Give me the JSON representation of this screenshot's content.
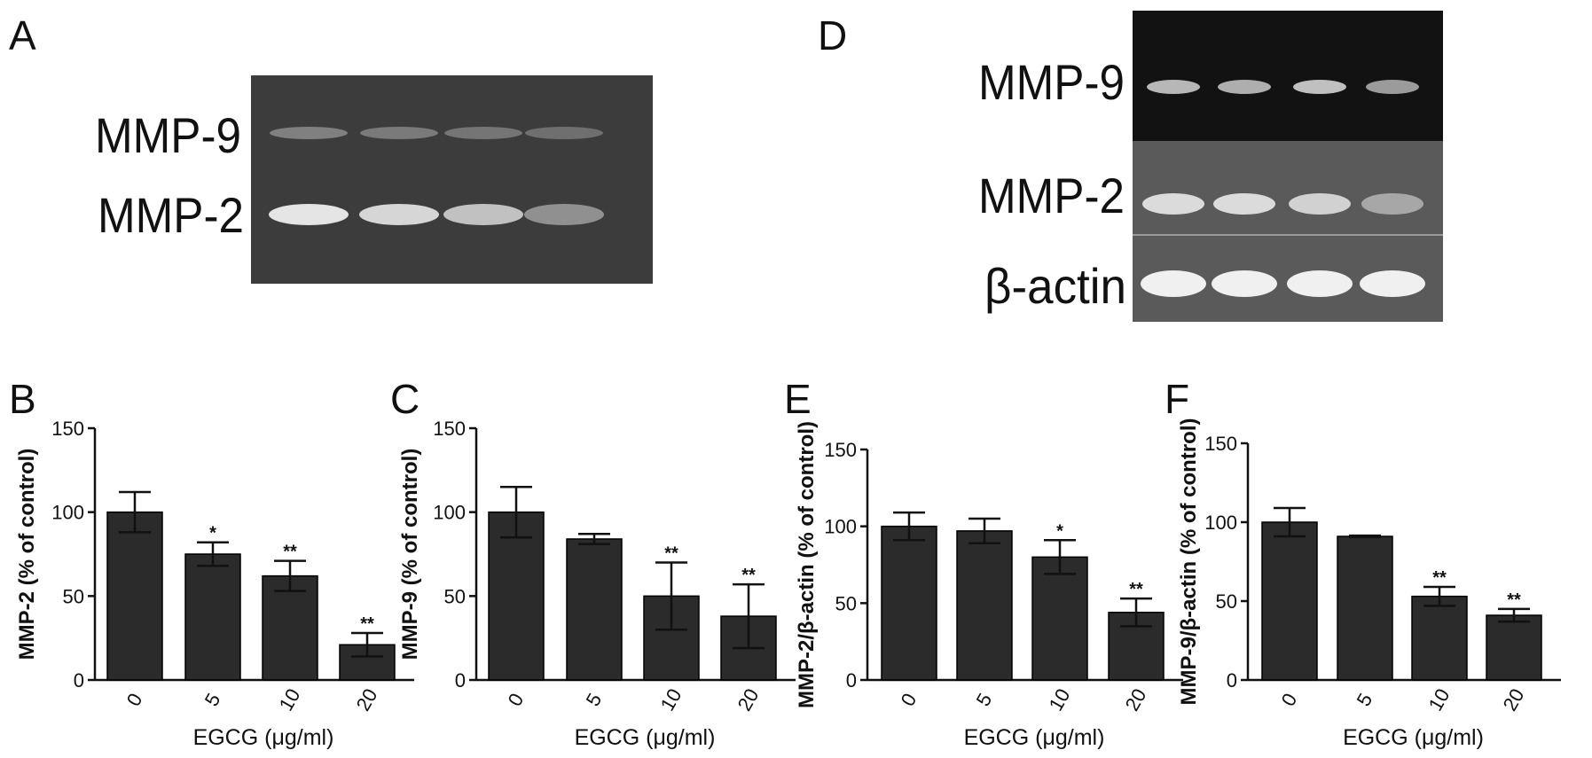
{
  "panels": {
    "A": {
      "letter": "A",
      "band_labels": [
        "MMP-9",
        "MMP-2"
      ],
      "band_intensity": {
        "MMP-9": [
          0.42,
          0.38,
          0.34,
          0.3
        ],
        "MMP-2": [
          0.95,
          0.88,
          0.78,
          0.52
        ]
      }
    },
    "D": {
      "letter": "D",
      "band_labels": [
        "MMP-9",
        "MMP-2",
        "β-actin"
      ],
      "band_intensity": {
        "MMP-9": [
          0.75,
          0.72,
          0.8,
          0.62
        ],
        "MMP-2": [
          0.9,
          0.9,
          0.85,
          0.62
        ],
        "β-actin": [
          1.0,
          1.0,
          1.0,
          1.0
        ]
      }
    }
  },
  "colors": {
    "bar": "#2b2b2b",
    "axis": "#111111",
    "gel_A": "#3c3c3c",
    "gel_D_dark": "#121212",
    "gel_D_light": "#5a5a5a"
  },
  "chart_data": [
    {
      "panel": "B",
      "type": "bar",
      "categories": [
        "0",
        "5",
        "10",
        "20"
      ],
      "values": [
        100,
        75,
        62,
        21
      ],
      "errors": [
        12,
        7,
        9,
        7
      ],
      "significance": [
        "",
        "*",
        "**",
        "**"
      ],
      "xlabel": "EGCG (μg/ml)",
      "ylabel": "MMP-2 (% of control)",
      "ylim": [
        0,
        150
      ],
      "yticks": [
        0,
        50,
        100,
        150
      ]
    },
    {
      "panel": "C",
      "type": "bar",
      "categories": [
        "0",
        "5",
        "10",
        "20"
      ],
      "values": [
        100,
        84,
        50,
        38
      ],
      "errors": [
        15,
        3,
        20,
        19
      ],
      "significance": [
        "",
        "",
        "**",
        "**"
      ],
      "xlabel": "EGCG (μg/ml)",
      "ylabel": "MMP-9 (% of control)",
      "ylim": [
        0,
        150
      ],
      "yticks": [
        0,
        50,
        100,
        150
      ]
    },
    {
      "panel": "E",
      "type": "bar",
      "categories": [
        "0",
        "5",
        "10",
        "20"
      ],
      "values": [
        100,
        97,
        80,
        44
      ],
      "errors": [
        9,
        8,
        11,
        9
      ],
      "significance": [
        "",
        "",
        "*",
        "**"
      ],
      "xlabel": "EGCG (μg/ml)",
      "ylabel": "MMP-2/β-actin (% of control)",
      "ylim": [
        0,
        150
      ],
      "yticks": [
        0,
        50,
        100,
        150
      ]
    },
    {
      "panel": "F",
      "type": "bar",
      "categories": [
        "0",
        "5",
        "10",
        "20"
      ],
      "values": [
        100,
        91,
        53,
        41
      ],
      "errors": [
        9,
        0.5,
        6,
        4
      ],
      "significance": [
        "",
        "",
        "**",
        "**"
      ],
      "xlabel": "EGCG (μg/ml)",
      "ylabel": "MMP-9/β-actin (% of control)",
      "ylim": [
        0,
        150
      ],
      "yticks": [
        0,
        50,
        100,
        150
      ]
    }
  ]
}
